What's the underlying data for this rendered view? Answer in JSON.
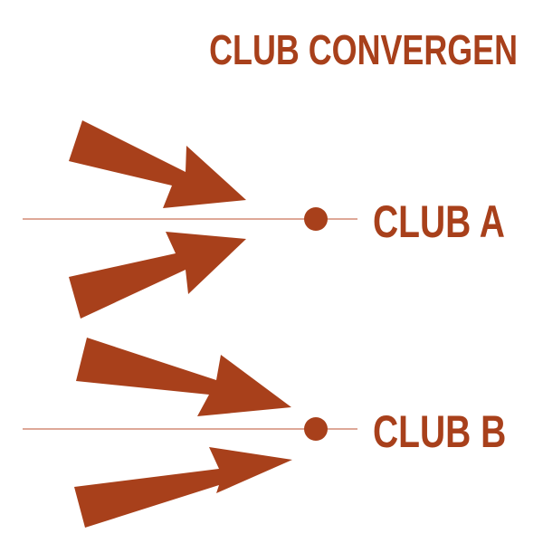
{
  "title": "CLUB CONVERGEN",
  "clubs": [
    {
      "label": "CLUB A"
    },
    {
      "label": "CLUB B"
    }
  ],
  "colors": {
    "accent": "#A8401B",
    "line": "#C9745A",
    "background": "#FFFFFF"
  },
  "icons": {
    "arrow": "arrow-right-icon",
    "node": "dot-icon"
  }
}
